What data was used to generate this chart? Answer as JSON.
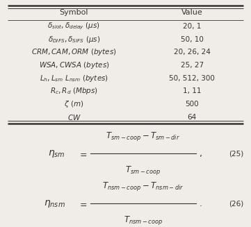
{
  "table_headers": [
    "Symbol",
    "Value"
  ],
  "table_rows": [
    [
      "$\\delta_{slot}, \\delta_{delay}\\ (\\mu s)$",
      "20, 1"
    ],
    [
      "$\\delta_{DIFS}, \\delta_{SIFS}\\ (\\mu s)$",
      "50, 10"
    ],
    [
      "$\\mathit{CRM}, \\mathit{CAM}, \\mathit{ORM}\\ \\mathit{(bytes)}$",
      "20, 26, 24"
    ],
    [
      "$\\mathit{WSA}, \\mathit{CWSA}\\ \\mathit{(bytes)}$",
      "25, 27"
    ],
    [
      "$L_h, L_{sm}\\ L_{nsm}\\ \\mathit{(bytes)}$",
      "50, 512, 300"
    ],
    [
      "$R_c, R_d\\ \\mathit{(Mbps)}$",
      "1, 11"
    ],
    [
      "$\\zeta\\ \\mathit{(m)}$",
      "500"
    ],
    [
      "$\\mathit{CW}$",
      "64"
    ]
  ],
  "eq1_lhs": "$\\eta_{sm}$",
  "eq1_num": "$T_{sm-coop} - T_{sm-dir}$",
  "eq1_den": "$T_{sm-coop}$",
  "eq1_punct": ",",
  "eq1_label": "(25)",
  "eq2_lhs": "$\\eta_{nsm}$",
  "eq2_num": "$T_{nsm-coop} - T_{nsm-dir}$",
  "eq2_den": "$T_{nsm-coop}$",
  "eq2_punct": ".",
  "eq2_label": "(26)",
  "bg_color": "#f0ede8",
  "line_color": "#333333",
  "header_fontsize": 8,
  "row_fontsize": 7.5,
  "eq_fontsize": 9
}
